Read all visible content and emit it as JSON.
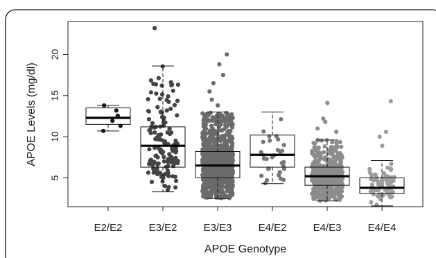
{
  "chart_data": {
    "type": "boxplot",
    "title": "",
    "xlabel": "APOE Genotype",
    "ylabel": "APOE Levels (mg/dl)",
    "ylim": [
      1.5,
      24.0
    ],
    "yticks": [
      5,
      10,
      15,
      20
    ],
    "grid": false,
    "legend": "none",
    "categories": [
      "E2/E2",
      "E3/E2",
      "E3/E3",
      "E4/E2",
      "E4/E3",
      "E4/E4"
    ],
    "boxes": [
      {
        "genotype": "E2/E2",
        "whisker_low": 10.7,
        "q1": 11.5,
        "median": 12.3,
        "q3": 13.5,
        "whisker_high": 13.8,
        "n_points": 6,
        "point_color": "#1a1a1a"
      },
      {
        "genotype": "E3/E2",
        "whisker_low": 3.3,
        "q1": 6.3,
        "median": 8.9,
        "q3": 11.2,
        "whisker_high": 18.6,
        "n_points": 140,
        "point_color": "#444444"
      },
      {
        "genotype": "E3/E3",
        "whisker_low": 2.5,
        "q1": 5.0,
        "median": 6.5,
        "q3": 8.2,
        "whisker_high": 13.0,
        "n_points": 900,
        "point_color": "#6b6b6b"
      },
      {
        "genotype": "E4/E2",
        "whisker_low": 4.3,
        "q1": 6.3,
        "median": 7.8,
        "q3": 10.2,
        "whisker_high": 13.0,
        "n_points": 30,
        "point_color": "#777777"
      },
      {
        "genotype": "E4/E3",
        "whisker_low": 2.2,
        "q1": 4.1,
        "median": 5.2,
        "q3": 6.3,
        "whisker_high": 9.6,
        "n_points": 450,
        "point_color": "#8c8c8c"
      },
      {
        "genotype": "E4/E4",
        "whisker_low": 1.6,
        "q1": 3.1,
        "median": 3.8,
        "q3": 5.0,
        "whisker_high": 7.1,
        "n_points": 70,
        "point_color": "#9d9d9d"
      }
    ],
    "outliers": [
      {
        "genotype": "E3/E2",
        "y": 23.2
      },
      {
        "genotype": "E3/E3",
        "y": 20.0
      },
      {
        "genotype": "E3/E3",
        "y": 18.8
      },
      {
        "genotype": "E3/E3",
        "y": 17.5
      },
      {
        "genotype": "E3/E3",
        "y": 16.5
      },
      {
        "genotype": "E3/E3",
        "y": 15.5
      },
      {
        "genotype": "E3/E3",
        "y": 14.5
      },
      {
        "genotype": "E3/E3",
        "y": 13.8
      },
      {
        "genotype": "E4/E3",
        "y": 14.1
      },
      {
        "genotype": "E4/E3",
        "y": 12.2
      },
      {
        "genotype": "E4/E3",
        "y": 11.8
      },
      {
        "genotype": "E4/E3",
        "y": 11.0
      },
      {
        "genotype": "E4/E3",
        "y": 10.6
      },
      {
        "genotype": "E4/E4",
        "y": 14.3
      },
      {
        "genotype": "E4/E4",
        "y": 10.6
      },
      {
        "genotype": "E4/E4",
        "y": 10.0
      },
      {
        "genotype": "E4/E4",
        "y": 8.9
      }
    ]
  }
}
